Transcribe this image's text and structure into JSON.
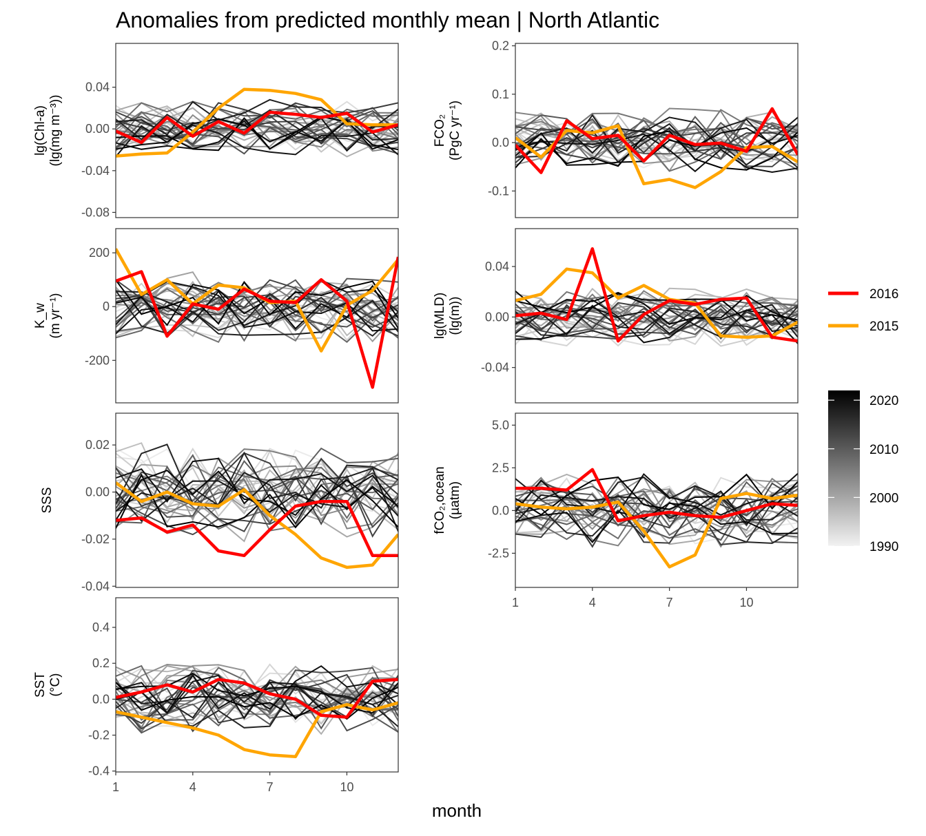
{
  "chart_data": {
    "type": "line",
    "title": "Anomalies from predicted monthly mean | North Atlantic",
    "xlabel": "month",
    "x_ticks": [
      1,
      4,
      7,
      10
    ],
    "xlim": [
      1,
      12
    ],
    "x": [
      1,
      2,
      3,
      4,
      5,
      6,
      7,
      8,
      9,
      10,
      11,
      12
    ],
    "legend": {
      "highlight": [
        {
          "name": "2016",
          "color": "#ff0000"
        },
        {
          "name": "2015",
          "color": "#ffa500"
        }
      ],
      "colorbar": {
        "ticks": [
          "2020",
          "2010",
          "2000",
          "1990"
        ],
        "range": [
          1990,
          2022
        ],
        "low_color": "#f2f2f2",
        "high_color": "#000000"
      }
    },
    "panels": [
      {
        "id": "chl",
        "ylabel_lines": [
          "lg(Chl-a)",
          "(lg(mg m⁻³))"
        ],
        "ylim": [
          -0.085,
          0.082
        ],
        "y_ticks": [
          0.04,
          0.0,
          -0.04,
          -0.08
        ],
        "y_tick_labels": [
          "0.04",
          "0.00",
          "-0.04",
          "-0.08"
        ],
        "series": [
          {
            "name": "2016",
            "values": [
              -0.002,
              -0.013,
              0.011,
              -0.007,
              0.007,
              -0.004,
              0.016,
              0.014,
              0.011,
              0.015,
              -0.003,
              0.004
            ]
          },
          {
            "name": "2015",
            "values": [
              -0.026,
              -0.024,
              -0.023,
              -0.003,
              0.02,
              0.038,
              0.037,
              0.034,
              0.028,
              0.005,
              0.004,
              0.004
            ]
          }
        ],
        "amplitude": 0.018
      },
      {
        "id": "fco2",
        "ylabel_lines": [
          "FCO₂",
          "(PgC yr⁻¹)"
        ],
        "ylim": [
          -0.155,
          0.205
        ],
        "y_ticks": [
          0.2,
          0.1,
          0.0,
          -0.1
        ],
        "y_tick_labels": [
          "0.2",
          "0.1",
          "0.0",
          "-0.1"
        ],
        "series": [
          {
            "name": "2016",
            "values": [
              -0.005,
              -0.062,
              0.045,
              0.008,
              0.015,
              -0.038,
              0.015,
              -0.004,
              -0.001,
              -0.018,
              0.07,
              -0.025
            ]
          },
          {
            "name": "2015",
            "values": [
              0.01,
              -0.03,
              0.025,
              0.02,
              0.035,
              -0.085,
              -0.076,
              -0.093,
              -0.06,
              -0.01,
              -0.008,
              -0.04
            ]
          }
        ],
        "amplitude": 0.045
      },
      {
        "id": "kw",
        "ylabel_lines": [
          "K_w",
          "(m yr⁻¹)"
        ],
        "ylim": [
          -358,
          290
        ],
        "y_ticks": [
          200,
          0,
          -200
        ],
        "y_tick_labels": [
          "200",
          "0",
          "-200"
        ],
        "series": [
          {
            "name": "2016",
            "values": [
              95,
              130,
              -110,
              10,
              -10,
              65,
              20,
              15,
              100,
              20,
              -300,
              185
            ]
          },
          {
            "name": "2015",
            "values": [
              215,
              45,
              100,
              10,
              80,
              70,
              15,
              20,
              -165,
              5,
              60,
              175
            ]
          }
        ],
        "amplitude": 90
      },
      {
        "id": "mld",
        "ylabel_lines": [
          "lg(MLD)",
          "(lg(m))"
        ],
        "ylim": [
          -0.068,
          0.07
        ],
        "y_ticks": [
          0.04,
          0.0,
          -0.04
        ],
        "y_tick_labels": [
          "0.04",
          "0.00",
          "-0.04"
        ],
        "series": [
          {
            "name": "2016",
            "values": [
              0.001,
              0.003,
              -0.002,
              0.054,
              -0.019,
              0.002,
              0.013,
              0.01,
              0.014,
              0.015,
              -0.016,
              -0.019
            ]
          },
          {
            "name": "2015",
            "values": [
              0.013,
              0.018,
              0.038,
              0.035,
              0.015,
              0.025,
              0.014,
              0.011,
              -0.015,
              -0.016,
              -0.015,
              -0.004
            ]
          }
        ],
        "amplitude": 0.015
      },
      {
        "id": "sss",
        "ylabel_lines": [
          "SSS"
        ],
        "ylim": [
          -0.0405,
          0.0335
        ],
        "y_ticks": [
          0.02,
          0.0,
          -0.02,
          -0.04
        ],
        "y_tick_labels": [
          "0.02",
          "0.00",
          "-0.02",
          "-0.04"
        ],
        "series": [
          {
            "name": "2016",
            "values": [
              -0.012,
              -0.011,
              -0.017,
              -0.014,
              -0.025,
              -0.027,
              -0.016,
              -0.006,
              -0.004,
              -0.004,
              -0.027,
              -0.027
            ]
          },
          {
            "name": "2015",
            "values": [
              0.004,
              -0.004,
              0.0,
              -0.005,
              -0.006,
              0.001,
              -0.01,
              -0.018,
              -0.028,
              -0.032,
              -0.031,
              -0.018
            ]
          }
        ],
        "amplitude": 0.014
      },
      {
        "id": "fco2ocean",
        "ylabel_lines": [
          "fCO₂,ocean",
          "(µatm)"
        ],
        "ylim": [
          -4.5,
          5.7
        ],
        "y_ticks": [
          5.0,
          2.5,
          0.0,
          -2.5
        ],
        "y_tick_labels": [
          "5.0",
          "2.5",
          "0.0",
          "-2.5"
        ],
        "series": [
          {
            "name": "2016",
            "values": [
              1.3,
              1.3,
              1.2,
              2.4,
              -0.6,
              -0.3,
              -0.1,
              -0.3,
              -0.4,
              0.0,
              0.4,
              0.3
            ]
          },
          {
            "name": "2015",
            "values": [
              0.4,
              0.2,
              0.1,
              0.2,
              0.5,
              -1.2,
              -3.3,
              -2.6,
              0.7,
              1.0,
              0.7,
              0.9
            ]
          }
        ],
        "amplitude": 1.4
      },
      {
        "id": "sst",
        "ylabel_lines": [
          "SST",
          "(°C)"
        ],
        "ylim": [
          -0.405,
          0.565
        ],
        "y_ticks": [
          0.4,
          0.2,
          0.0,
          -0.2,
          -0.4
        ],
        "y_tick_labels": [
          "0.4",
          "0.2",
          "0.0",
          "-0.2",
          "-0.4"
        ],
        "series": [
          {
            "name": "2016",
            "values": [
              0.01,
              0.04,
              0.08,
              0.04,
              0.11,
              0.09,
              0.03,
              0.0,
              -0.09,
              -0.1,
              0.1,
              0.11
            ]
          },
          {
            "name": "2015",
            "values": [
              -0.07,
              -0.1,
              -0.13,
              -0.16,
              -0.2,
              -0.28,
              -0.31,
              -0.32,
              -0.07,
              -0.03,
              -0.06,
              -0.02
            ]
          }
        ],
        "amplitude": 0.14
      }
    ]
  }
}
